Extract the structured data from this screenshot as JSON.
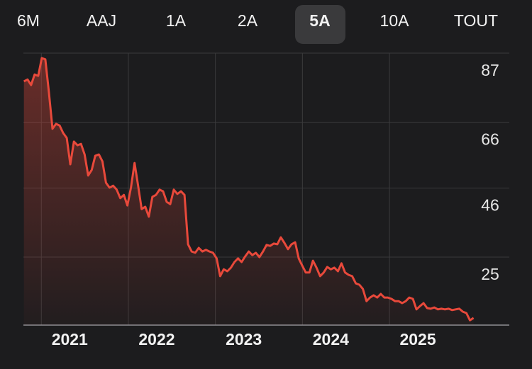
{
  "tabs": [
    "6M",
    "AAJ",
    "1A",
    "2A",
    "5A",
    "10A",
    "TOUT"
  ],
  "selected_tab": 4,
  "chart_data": {
    "type": "line",
    "x": [
      2020.8,
      2020.841,
      2020.882,
      2020.923,
      2020.964,
      2021.005,
      2021.046,
      2021.087,
      2021.128,
      2021.169,
      2021.21,
      2021.251,
      2021.292,
      2021.333,
      2021.374,
      2021.415,
      2021.456,
      2021.497,
      2021.538,
      2021.579,
      2021.62,
      2021.661,
      2021.702,
      2021.743,
      2021.784,
      2021.825,
      2021.866,
      2021.907,
      2021.948,
      2021.989,
      2022.03,
      2022.071,
      2022.112,
      2022.153,
      2022.194,
      2022.235,
      2022.276,
      2022.317,
      2022.358,
      2022.399,
      2022.44,
      2022.481,
      2022.522,
      2022.563,
      2022.604,
      2022.645,
      2022.686,
      2022.727,
      2022.768,
      2022.809,
      2022.85,
      2022.891,
      2022.932,
      2022.973,
      2023.014,
      2023.055,
      2023.096,
      2023.137,
      2023.178,
      2023.219,
      2023.26,
      2023.301,
      2023.342,
      2023.383,
      2023.424,
      2023.465,
      2023.506,
      2023.547,
      2023.588,
      2023.629,
      2023.67,
      2023.711,
      2023.752,
      2023.793,
      2023.834,
      2023.875,
      2023.916,
      2023.957,
      2023.998,
      2024.039,
      2024.08,
      2024.121,
      2024.162,
      2024.203,
      2024.244,
      2024.285,
      2024.326,
      2024.367,
      2024.408,
      2024.449,
      2024.49,
      2024.531,
      2024.572,
      2024.613,
      2024.654,
      2024.695,
      2024.736,
      2024.777,
      2024.818,
      2024.859,
      2024.9,
      2024.941,
      2024.982,
      2025.023,
      2025.064,
      2025.105,
      2025.146,
      2025.187,
      2025.228,
      2025.269,
      2025.31,
      2025.351,
      2025.392,
      2025.433,
      2025.474,
      2025.515,
      2025.556,
      2025.597,
      2025.638,
      2025.679,
      2025.72,
      2025.761,
      2025.802,
      2025.843,
      2025.884,
      2025.925,
      2025.966
    ],
    "series": [
      {
        "color": "#e8493b",
        "values": [
          78.4,
          79.0,
          77.3,
          80.5,
          80.1,
          85.5,
          85.1,
          75.2,
          64.0,
          65.5,
          65.0,
          62.7,
          61.2,
          53.2,
          60.1,
          59.0,
          59.4,
          56.2,
          49.8,
          51.5,
          55.8,
          56.2,
          54.1,
          47.6,
          46.1,
          46.7,
          45.5,
          42.9,
          43.9,
          40.7,
          46.1,
          53.6,
          46.7,
          39.6,
          40.3,
          37.3,
          43.3,
          43.9,
          45.5,
          45.0,
          41.8,
          41.1,
          45.5,
          44.2,
          45.0,
          43.9,
          28.9,
          26.7,
          26.3,
          27.8,
          26.7,
          27.2,
          26.7,
          26.3,
          24.6,
          19.2,
          21.3,
          20.7,
          21.8,
          23.5,
          24.6,
          23.5,
          25.2,
          26.7,
          25.6,
          26.3,
          25.0,
          26.7,
          28.7,
          28.4,
          29.1,
          28.9,
          31.0,
          29.3,
          27.4,
          28.9,
          29.5,
          24.6,
          22.4,
          20.3,
          20.3,
          23.9,
          21.8,
          19.2,
          20.3,
          22.0,
          21.3,
          21.8,
          20.7,
          23.1,
          20.3,
          19.6,
          19.2,
          17.0,
          16.6,
          15.3,
          11.6,
          12.7,
          13.4,
          12.7,
          13.8,
          12.7,
          12.7,
          12.3,
          11.6,
          11.6,
          11.0,
          11.6,
          12.7,
          12.3,
          9.1,
          10.1,
          11.0,
          9.5,
          9.3,
          9.7,
          9.1,
          9.3,
          9.1,
          9.3,
          8.9,
          9.1,
          9.3,
          8.4,
          8.0,
          5.8,
          6.5
        ]
      }
    ],
    "xlim": [
      2020.794,
      2026.377
    ],
    "xticks": [
      2021,
      2022,
      2023,
      2024,
      2025
    ],
    "ylim": [
      4.33,
      87
    ],
    "yticks": [
      87,
      66,
      46,
      25
    ],
    "grid": true,
    "area_fill": true
  }
}
